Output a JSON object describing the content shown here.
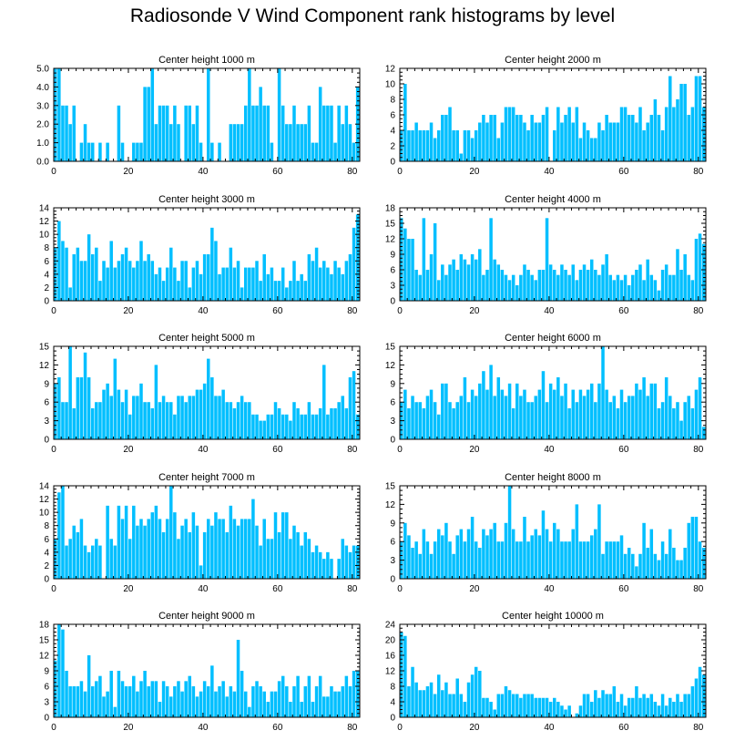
{
  "title": "Radiosonde V Wind Component rank histograms by level",
  "colors": {
    "bar": "#00BFFF",
    "bar_edge": "#66D6FF",
    "axis": "#000000",
    "background": "#FFFFFF"
  },
  "chart_data": [
    {
      "type": "bar",
      "title": "Center height 1000 m",
      "xlabel": "",
      "ylabel": "",
      "xlim": [
        0,
        82
      ],
      "ylim": [
        0,
        5
      ],
      "xticks": [
        0,
        20,
        40,
        60,
        80
      ],
      "yticks": [
        0,
        1,
        2,
        3,
        4,
        5
      ],
      "ytick_labels": [
        "0.0",
        "1.0",
        "2.0",
        "3.0",
        "4.0",
        "5.0"
      ],
      "values": [
        5,
        5,
        3,
        3,
        2,
        3,
        0,
        1,
        2,
        1,
        1,
        0,
        1,
        0,
        1,
        0,
        0,
        3,
        1,
        0,
        0,
        1,
        1,
        1,
        4,
        4,
        5,
        2,
        3,
        3,
        3,
        2,
        3,
        2,
        0,
        3,
        3,
        2,
        3,
        1,
        0,
        5,
        1,
        0,
        1,
        0,
        0,
        2,
        2,
        2,
        2,
        3,
        5,
        3,
        3,
        4,
        3,
        3,
        1,
        0,
        5,
        3,
        2,
        2,
        3,
        2,
        2,
        2,
        3,
        1,
        1,
        4,
        3,
        3,
        3,
        1,
        3,
        2,
        3,
        2,
        1,
        4
      ]
    },
    {
      "type": "bar",
      "title": "Center height 2000 m",
      "xlabel": "",
      "ylabel": "",
      "xlim": [
        0,
        82
      ],
      "ylim": [
        0,
        12
      ],
      "xticks": [
        0,
        20,
        40,
        60,
        80
      ],
      "yticks": [
        0,
        2,
        4,
        6,
        8,
        10,
        12
      ],
      "ytick_labels": [
        "0",
        "2",
        "4",
        "6",
        "8",
        "10",
        "12"
      ],
      "values": [
        4,
        10,
        4,
        4,
        5,
        4,
        4,
        4,
        5,
        3,
        4,
        6,
        6,
        7,
        4,
        4,
        1,
        4,
        4,
        3,
        4,
        5,
        6,
        5,
        6,
        6,
        3,
        5,
        7,
        7,
        7,
        6,
        6,
        5,
        4,
        6,
        5,
        5,
        6,
        7,
        0,
        4,
        7,
        5,
        6,
        7,
        5,
        7,
        3,
        5,
        4,
        3,
        3,
        5,
        4,
        6,
        5,
        5,
        5,
        7,
        7,
        6,
        6,
        5,
        7,
        4,
        5,
        6,
        8,
        6,
        4,
        7,
        11,
        7,
        8,
        10,
        10,
        6,
        7,
        11,
        11,
        7
      ]
    },
    {
      "type": "bar",
      "title": "Center height 3000 m",
      "xlabel": "",
      "ylabel": "",
      "xlim": [
        0,
        82
      ],
      "ylim": [
        0,
        14
      ],
      "xticks": [
        0,
        20,
        40,
        60,
        80
      ],
      "yticks": [
        0,
        2,
        4,
        6,
        8,
        10,
        12,
        14
      ],
      "ytick_labels": [
        "0",
        "2",
        "4",
        "6",
        "8",
        "10",
        "12",
        "14"
      ],
      "values": [
        8,
        12,
        9,
        8,
        2,
        7,
        8,
        6,
        6,
        10,
        7,
        8,
        3,
        6,
        5,
        9,
        5,
        6,
        7,
        8,
        6,
        5,
        6,
        9,
        6,
        7,
        6,
        4,
        5,
        3,
        5,
        8,
        5,
        3,
        6,
        6,
        2,
        5,
        6,
        4,
        7,
        7,
        11,
        9,
        4,
        5,
        5,
        8,
        5,
        6,
        2,
        5,
        5,
        5,
        6,
        3,
        7,
        4,
        5,
        3,
        3,
        5,
        2,
        3,
        6,
        3,
        4,
        3,
        7,
        6,
        8,
        5,
        6,
        5,
        4,
        6,
        5,
        4,
        6,
        7,
        11,
        13
      ]
    },
    {
      "type": "bar",
      "title": "Center height 4000 m",
      "xlabel": "",
      "ylabel": "",
      "xlim": [
        0,
        82
      ],
      "ylim": [
        0,
        18
      ],
      "xticks": [
        0,
        20,
        40,
        60,
        80
      ],
      "yticks": [
        0,
        3,
        6,
        9,
        12,
        15,
        18
      ],
      "ytick_labels": [
        "0",
        "3",
        "6",
        "9",
        "12",
        "15",
        "18"
      ],
      "values": [
        16,
        14,
        12,
        12,
        6,
        5,
        16,
        6,
        9,
        15,
        4,
        7,
        5,
        7,
        8,
        6,
        9,
        8,
        7,
        9,
        8,
        10,
        5,
        6,
        16,
        8,
        7,
        6,
        5,
        4,
        5,
        3,
        5,
        7,
        6,
        5,
        4,
        6,
        6,
        16,
        7,
        6,
        5,
        7,
        6,
        5,
        7,
        4,
        6,
        7,
        6,
        8,
        6,
        5,
        7,
        9,
        5,
        4,
        5,
        4,
        5,
        3,
        5,
        6,
        7,
        4,
        8,
        5,
        4,
        2,
        6,
        7,
        5,
        5,
        10,
        6,
        9,
        5,
        4,
        12,
        13,
        11
      ]
    },
    {
      "type": "bar",
      "title": "Center height 5000 m",
      "xlabel": "",
      "ylabel": "",
      "xlim": [
        0,
        82
      ],
      "ylim": [
        0,
        15
      ],
      "xticks": [
        0,
        20,
        40,
        60,
        80
      ],
      "yticks": [
        0,
        3,
        6,
        9,
        12,
        15
      ],
      "ytick_labels": [
        "0",
        "3",
        "6",
        "9",
        "12",
        "15"
      ],
      "values": [
        9,
        10,
        6,
        6,
        15,
        5,
        10,
        10,
        14,
        10,
        5,
        6,
        6,
        8,
        9,
        7,
        13,
        8,
        6,
        8,
        4,
        7,
        7,
        9,
        6,
        6,
        5,
        12,
        6,
        7,
        6,
        6,
        4,
        7,
        7,
        6,
        7,
        7,
        8,
        8,
        9,
        13,
        10,
        7,
        7,
        8,
        6,
        6,
        5,
        6,
        7,
        6,
        6,
        4,
        4,
        3,
        3,
        4,
        4,
        6,
        5,
        4,
        4,
        3,
        6,
        5,
        4,
        4,
        6,
        4,
        4,
        5,
        12,
        4,
        5,
        5,
        6,
        7,
        5,
        10,
        11,
        4
      ]
    },
    {
      "type": "bar",
      "title": "Center height 6000 m",
      "xlabel": "",
      "ylabel": "",
      "xlim": [
        0,
        82
      ],
      "ylim": [
        0,
        15
      ],
      "xticks": [
        0,
        20,
        40,
        60,
        80
      ],
      "yticks": [
        0,
        3,
        6,
        9,
        12,
        15
      ],
      "ytick_labels": [
        "0",
        "3",
        "6",
        "9",
        "12",
        "15"
      ],
      "values": [
        6,
        8,
        5,
        7,
        6,
        6,
        5,
        7,
        8,
        6,
        4,
        9,
        9,
        6,
        5,
        6,
        7,
        10,
        6,
        8,
        7,
        9,
        11,
        8,
        12,
        7,
        10,
        8,
        7,
        9,
        5,
        9,
        7,
        8,
        6,
        6,
        7,
        8,
        11,
        6,
        9,
        8,
        10,
        7,
        9,
        5,
        8,
        6,
        8,
        7,
        8,
        9,
        6,
        9,
        15,
        8,
        6,
        7,
        5,
        8,
        6,
        7,
        7,
        9,
        8,
        10,
        7,
        9,
        9,
        5,
        6,
        10,
        7,
        5,
        6,
        3,
        6,
        7,
        5,
        8,
        10,
        2
      ]
    },
    {
      "type": "bar",
      "title": "Center height 7000 m",
      "xlabel": "",
      "ylabel": "",
      "xlim": [
        0,
        82
      ],
      "ylim": [
        0,
        14
      ],
      "xticks": [
        0,
        20,
        40,
        60,
        80
      ],
      "yticks": [
        0,
        2,
        4,
        6,
        8,
        10,
        12,
        14
      ],
      "ytick_labels": [
        "0",
        "2",
        "4",
        "6",
        "8",
        "10",
        "12",
        "14"
      ],
      "values": [
        6,
        13,
        14,
        5,
        6,
        8,
        7,
        9,
        5,
        4,
        5,
        6,
        5,
        0,
        11,
        6,
        5,
        11,
        9,
        11,
        6,
        11,
        8,
        9,
        8,
        9,
        10,
        11,
        9,
        7,
        9,
        14,
        10,
        6,
        8,
        9,
        7,
        10,
        8,
        2,
        7,
        9,
        8,
        10,
        9,
        9,
        7,
        11,
        9,
        8,
        9,
        9,
        9,
        12,
        8,
        5,
        9,
        6,
        6,
        10,
        7,
        10,
        10,
        6,
        8,
        7,
        5,
        7,
        6,
        4,
        5,
        4,
        3,
        4,
        3,
        0,
        3,
        6,
        5,
        4,
        5,
        5
      ]
    },
    {
      "type": "bar",
      "title": "Center height 8000 m",
      "xlabel": "",
      "ylabel": "",
      "xlim": [
        0,
        82
      ],
      "ylim": [
        0,
        15
      ],
      "xticks": [
        0,
        20,
        40,
        60,
        80
      ],
      "yticks": [
        0,
        3,
        6,
        9,
        12,
        15
      ],
      "ytick_labels": [
        "0",
        "3",
        "6",
        "9",
        "12",
        "15"
      ],
      "values": [
        6,
        9,
        7,
        5,
        6,
        4,
        8,
        6,
        4,
        6,
        8,
        7,
        9,
        6,
        4,
        7,
        8,
        6,
        8,
        10,
        6,
        5,
        8,
        7,
        8,
        9,
        6,
        6,
        9,
        15,
        8,
        6,
        6,
        10,
        6,
        7,
        8,
        7,
        11,
        8,
        6,
        9,
        8,
        6,
        6,
        6,
        8,
        12,
        6,
        6,
        6,
        7,
        8,
        12,
        4,
        6,
        6,
        6,
        6,
        7,
        4,
        5,
        4,
        2,
        4,
        9,
        5,
        8,
        4,
        3,
        6,
        4,
        8,
        5,
        3,
        3,
        5,
        9,
        10,
        10,
        6,
        5
      ]
    },
    {
      "type": "bar",
      "title": "Center height 9000 m",
      "xlabel": "",
      "ylabel": "",
      "xlim": [
        0,
        82
      ],
      "ylim": [
        0,
        18
      ],
      "xticks": [
        0,
        20,
        40,
        60,
        80
      ],
      "yticks": [
        0,
        3,
        6,
        9,
        12,
        15,
        18
      ],
      "ytick_labels": [
        "0",
        "3",
        "6",
        "9",
        "12",
        "15",
        "18"
      ],
      "values": [
        11,
        18,
        17,
        9,
        6,
        6,
        6,
        7,
        5,
        12,
        6,
        7,
        8,
        4,
        5,
        9,
        2,
        9,
        7,
        6,
        6,
        8,
        5,
        7,
        9,
        6,
        7,
        7,
        3,
        7,
        6,
        4,
        6,
        7,
        5,
        7,
        8,
        6,
        4,
        5,
        7,
        6,
        10,
        5,
        6,
        7,
        4,
        6,
        5,
        15,
        9,
        5,
        2,
        6,
        7,
        6,
        5,
        3,
        5,
        5,
        7,
        8,
        6,
        3,
        6,
        8,
        3,
        6,
        8,
        3,
        6,
        8,
        4,
        4,
        6,
        5,
        5,
        6,
        8,
        6,
        9,
        9
      ]
    },
    {
      "type": "bar",
      "title": "Center height 10000 m",
      "xlabel": "",
      "ylabel": "",
      "xlim": [
        0,
        82
      ],
      "ylim": [
        0,
        24
      ],
      "xticks": [
        0,
        20,
        40,
        60,
        80
      ],
      "yticks": [
        0,
        4,
        8,
        12,
        16,
        20,
        24
      ],
      "ytick_labels": [
        "0",
        "4",
        "8",
        "12",
        "16",
        "20",
        "24"
      ],
      "values": [
        22,
        21,
        8,
        13,
        9,
        7,
        7,
        8,
        9,
        6,
        11,
        7,
        9,
        6,
        6,
        10,
        6,
        4,
        9,
        11,
        13,
        12,
        5,
        5,
        4,
        2,
        6,
        6,
        8,
        7,
        6,
        6,
        5,
        6,
        6,
        6,
        5,
        5,
        5,
        5,
        4,
        5,
        4,
        3,
        2,
        3,
        0,
        1,
        3,
        6,
        6,
        4,
        7,
        5,
        7,
        6,
        6,
        8,
        4,
        6,
        3,
        5,
        5,
        8,
        5,
        6,
        5,
        6,
        4,
        3,
        6,
        3,
        5,
        4,
        6,
        4,
        6,
        6,
        8,
        10,
        13,
        11
      ]
    }
  ]
}
